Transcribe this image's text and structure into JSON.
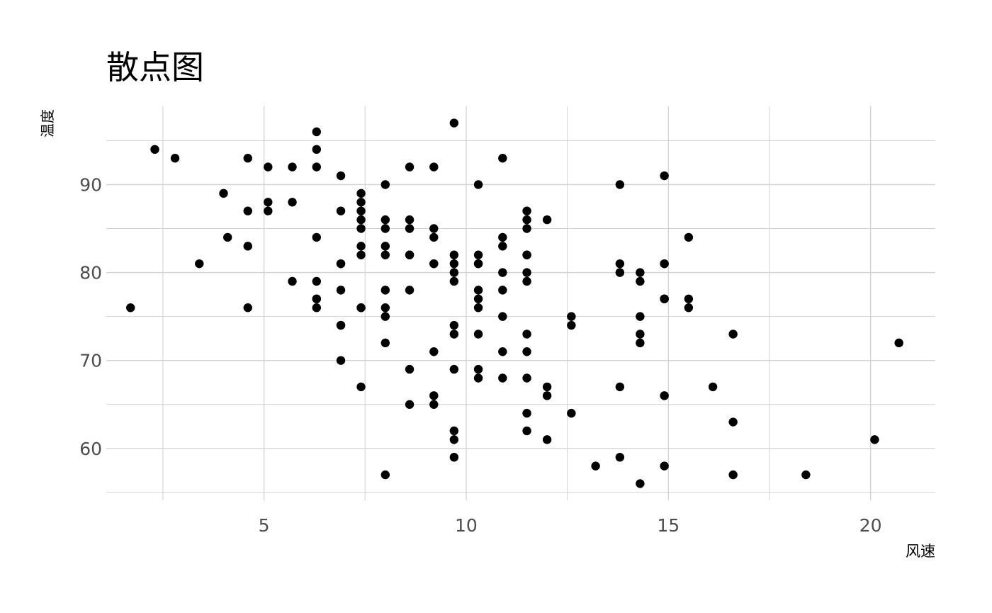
{
  "chart_data": {
    "type": "scatter",
    "title": "散点图",
    "xlabel": "风速",
    "ylabel": "温度",
    "xlim": [
      1.1,
      21.6
    ],
    "ylim": [
      54.1,
      98.9
    ],
    "x_major_ticks": [
      5,
      10,
      15,
      20
    ],
    "x_minor_ticks": [
      2.5,
      7.5,
      12.5,
      17.5
    ],
    "y_major_ticks": [
      60,
      70,
      80,
      90
    ],
    "y_minor_ticks": [
      55,
      65,
      75,
      85,
      95
    ],
    "grid": true,
    "legend": "none",
    "colors": {
      "point": "#000000",
      "grid": "#d2d2d2",
      "tick_label": "#4d4d4d"
    },
    "points": [
      {
        "x": 7.4,
        "y": 67
      },
      {
        "x": 8.0,
        "y": 72
      },
      {
        "x": 12.6,
        "y": 74
      },
      {
        "x": 11.5,
        "y": 62
      },
      {
        "x": 14.3,
        "y": 56
      },
      {
        "x": 14.9,
        "y": 66
      },
      {
        "x": 8.6,
        "y": 65
      },
      {
        "x": 13.8,
        "y": 59
      },
      {
        "x": 20.1,
        "y": 61
      },
      {
        "x": 8.6,
        "y": 69
      },
      {
        "x": 6.9,
        "y": 74
      },
      {
        "x": 9.7,
        "y": 69
      },
      {
        "x": 9.2,
        "y": 66
      },
      {
        "x": 10.9,
        "y": 68
      },
      {
        "x": 13.2,
        "y": 58
      },
      {
        "x": 11.5,
        "y": 64
      },
      {
        "x": 12.0,
        "y": 66
      },
      {
        "x": 18.4,
        "y": 57
      },
      {
        "x": 11.5,
        "y": 68
      },
      {
        "x": 9.7,
        "y": 62
      },
      {
        "x": 9.7,
        "y": 59
      },
      {
        "x": 16.6,
        "y": 73
      },
      {
        "x": 9.7,
        "y": 61
      },
      {
        "x": 12.0,
        "y": 61
      },
      {
        "x": 16.6,
        "y": 57
      },
      {
        "x": 14.9,
        "y": 58
      },
      {
        "x": 8.0,
        "y": 57
      },
      {
        "x": 12.0,
        "y": 67
      },
      {
        "x": 14.9,
        "y": 81
      },
      {
        "x": 5.7,
        "y": 79
      },
      {
        "x": 7.4,
        "y": 76
      },
      {
        "x": 8.6,
        "y": 78
      },
      {
        "x": 9.7,
        "y": 74
      },
      {
        "x": 16.1,
        "y": 67
      },
      {
        "x": 9.2,
        "y": 84
      },
      {
        "x": 8.6,
        "y": 85
      },
      {
        "x": 14.3,
        "y": 79
      },
      {
        "x": 9.7,
        "y": 82
      },
      {
        "x": 6.9,
        "y": 87
      },
      {
        "x": 13.8,
        "y": 90
      },
      {
        "x": 11.5,
        "y": 87
      },
      {
        "x": 10.9,
        "y": 93
      },
      {
        "x": 9.2,
        "y": 92
      },
      {
        "x": 8.0,
        "y": 82
      },
      {
        "x": 13.8,
        "y": 80
      },
      {
        "x": 11.5,
        "y": 79
      },
      {
        "x": 14.9,
        "y": 77
      },
      {
        "x": 20.7,
        "y": 72
      },
      {
        "x": 9.2,
        "y": 65
      },
      {
        "x": 11.5,
        "y": 73
      },
      {
        "x": 10.3,
        "y": 76
      },
      {
        "x": 6.3,
        "y": 77
      },
      {
        "x": 1.7,
        "y": 76
      },
      {
        "x": 4.6,
        "y": 76
      },
      {
        "x": 6.3,
        "y": 76
      },
      {
        "x": 8.0,
        "y": 75
      },
      {
        "x": 8.0,
        "y": 78
      },
      {
        "x": 10.3,
        "y": 73
      },
      {
        "x": 11.5,
        "y": 80
      },
      {
        "x": 14.9,
        "y": 77
      },
      {
        "x": 8.0,
        "y": 83
      },
      {
        "x": 4.1,
        "y": 84
      },
      {
        "x": 9.2,
        "y": 85
      },
      {
        "x": 9.2,
        "y": 81
      },
      {
        "x": 10.9,
        "y": 84
      },
      {
        "x": 4.6,
        "y": 83
      },
      {
        "x": 10.9,
        "y": 83
      },
      {
        "x": 5.1,
        "y": 88
      },
      {
        "x": 6.3,
        "y": 92
      },
      {
        "x": 5.7,
        "y": 92
      },
      {
        "x": 7.4,
        "y": 89
      },
      {
        "x": 8.6,
        "y": 82
      },
      {
        "x": 14.3,
        "y": 73
      },
      {
        "x": 14.9,
        "y": 81
      },
      {
        "x": 14.9,
        "y": 91
      },
      {
        "x": 14.3,
        "y": 80
      },
      {
        "x": 6.9,
        "y": 81
      },
      {
        "x": 10.3,
        "y": 82
      },
      {
        "x": 6.3,
        "y": 84
      },
      {
        "x": 5.1,
        "y": 87
      },
      {
        "x": 11.5,
        "y": 85
      },
      {
        "x": 6.9,
        "y": 74
      },
      {
        "x": 9.7,
        "y": 81
      },
      {
        "x": 11.5,
        "y": 82
      },
      {
        "x": 8.6,
        "y": 86
      },
      {
        "x": 8.0,
        "y": 85
      },
      {
        "x": 8.6,
        "y": 82
      },
      {
        "x": 12.0,
        "y": 86
      },
      {
        "x": 7.4,
        "y": 88
      },
      {
        "x": 7.4,
        "y": 86
      },
      {
        "x": 7.4,
        "y": 83
      },
      {
        "x": 9.2,
        "y": 81
      },
      {
        "x": 6.9,
        "y": 81
      },
      {
        "x": 13.8,
        "y": 81
      },
      {
        "x": 7.4,
        "y": 82
      },
      {
        "x": 4.0,
        "y": 89
      },
      {
        "x": 10.3,
        "y": 90
      },
      {
        "x": 8.0,
        "y": 90
      },
      {
        "x": 11.5,
        "y": 86
      },
      {
        "x": 11.5,
        "y": 82
      },
      {
        "x": 9.7,
        "y": 80
      },
      {
        "x": 10.3,
        "y": 77
      },
      {
        "x": 6.3,
        "y": 79
      },
      {
        "x": 7.4,
        "y": 76
      },
      {
        "x": 10.9,
        "y": 78
      },
      {
        "x": 10.3,
        "y": 78
      },
      {
        "x": 15.5,
        "y": 77
      },
      {
        "x": 14.3,
        "y": 72
      },
      {
        "x": 12.6,
        "y": 75
      },
      {
        "x": 9.7,
        "y": 79
      },
      {
        "x": 3.4,
        "y": 81
      },
      {
        "x": 8.0,
        "y": 86
      },
      {
        "x": 5.7,
        "y": 88
      },
      {
        "x": 9.7,
        "y": 97
      },
      {
        "x": 2.3,
        "y": 94
      },
      {
        "x": 6.3,
        "y": 96
      },
      {
        "x": 6.3,
        "y": 94
      },
      {
        "x": 6.9,
        "y": 91
      },
      {
        "x": 5.1,
        "y": 92
      },
      {
        "x": 2.8,
        "y": 93
      },
      {
        "x": 4.6,
        "y": 93
      },
      {
        "x": 7.4,
        "y": 87
      },
      {
        "x": 15.5,
        "y": 84
      },
      {
        "x": 10.9,
        "y": 80
      },
      {
        "x": 10.3,
        "y": 81
      },
      {
        "x": 10.9,
        "y": 71
      },
      {
        "x": 9.7,
        "y": 73
      },
      {
        "x": 14.9,
        "y": 77
      },
      {
        "x": 15.5,
        "y": 76
      },
      {
        "x": 6.3,
        "y": 77
      },
      {
        "x": 10.9,
        "y": 75
      },
      {
        "x": 11.5,
        "y": 71
      },
      {
        "x": 6.9,
        "y": 70
      },
      {
        "x": 13.8,
        "y": 67
      },
      {
        "x": 10.3,
        "y": 68
      },
      {
        "x": 10.3,
        "y": 69
      },
      {
        "x": 8.0,
        "y": 76
      },
      {
        "x": 12.6,
        "y": 64
      },
      {
        "x": 9.2,
        "y": 71
      },
      {
        "x": 10.3,
        "y": 81
      },
      {
        "x": 16.6,
        "y": 63
      },
      {
        "x": 6.9,
        "y": 78
      },
      {
        "x": 14.3,
        "y": 75
      },
      {
        "x": 4.6,
        "y": 87
      },
      {
        "x": 8.6,
        "y": 92
      },
      {
        "x": 7.4,
        "y": 85
      }
    ]
  }
}
